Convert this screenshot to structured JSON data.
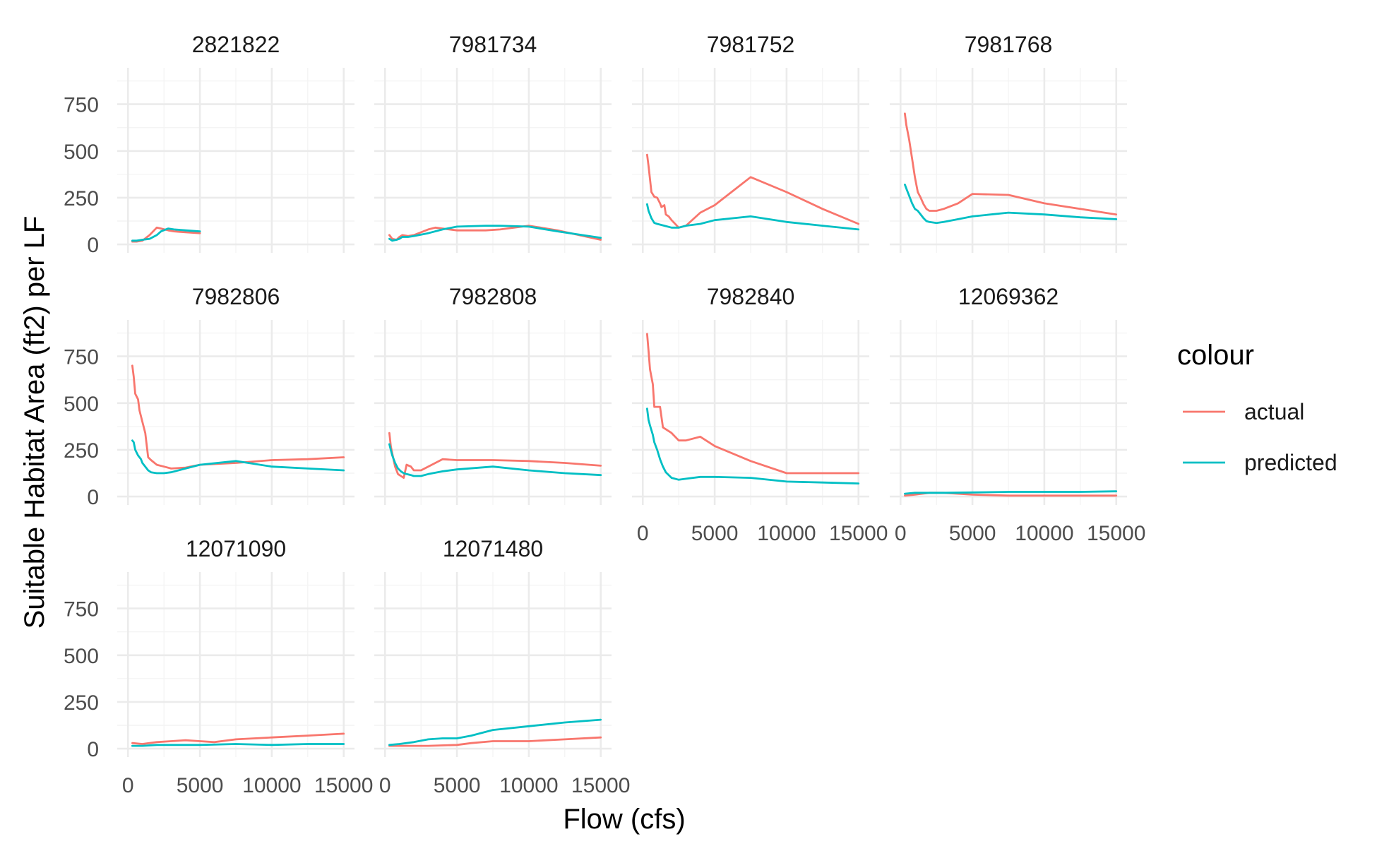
{
  "chart_data": {
    "type": "line",
    "xlabel": "Flow (cfs)",
    "ylabel": "Suitable Habitat Area (ft2) per LF",
    "xlim": [
      0,
      15000
    ],
    "ylim": [
      0,
      900
    ],
    "x_ticks": [
      0,
      5000,
      10000,
      15000
    ],
    "y_ticks": [
      0,
      250,
      500,
      750
    ],
    "grid": true,
    "legend": {
      "title": "colour",
      "placement": "right",
      "entries": [
        {
          "name": "actual",
          "color": "#F8766D"
        },
        {
          "name": "predicted",
          "color": "#00BFC4"
        }
      ]
    },
    "panels": [
      {
        "title": "2821822",
        "series": [
          {
            "name": "actual",
            "x": [
              300,
              600,
              1000,
              1500,
              2000,
              2300,
              2800,
              3200,
              4000,
              5000
            ],
            "y": [
              15,
              15,
              20,
              50,
              90,
              85,
              75,
              70,
              65,
              60
            ]
          },
          {
            "name": "predicted",
            "x": [
              300,
              600,
              1000,
              1500,
              2000,
              2300,
              2800,
              3200,
              4000,
              5000
            ],
            "y": [
              20,
              20,
              25,
              30,
              50,
              70,
              85,
              80,
              75,
              70
            ]
          }
        ]
      },
      {
        "title": "7981734",
        "series": [
          {
            "name": "actual",
            "x": [
              300,
              500,
              800,
              1000,
              1200,
              1600,
              2000,
              3000,
              3500,
              4000,
              5000,
              7000,
              8000,
              10000,
              12000,
              15000
            ],
            "y": [
              50,
              30,
              25,
              40,
              50,
              45,
              50,
              80,
              90,
              85,
              75,
              75,
              80,
              100,
              75,
              25
            ]
          },
          {
            "name": "predicted",
            "x": [
              300,
              500,
              800,
              1000,
              1200,
              1600,
              2000,
              3000,
              4000,
              5000,
              7000,
              8000,
              10000,
              12000,
              15000
            ],
            "y": [
              30,
              20,
              25,
              30,
              40,
              40,
              45,
              60,
              80,
              95,
              100,
              100,
              95,
              70,
              35
            ]
          }
        ]
      },
      {
        "title": "7981752",
        "series": [
          {
            "name": "actual",
            "x": [
              300,
              400,
              600,
              800,
              1000,
              1200,
              1300,
              1500,
              1600,
              1800,
              2000,
              2500,
              3000,
              4000,
              5000,
              7500,
              10000,
              12500,
              15000
            ],
            "y": [
              480,
              420,
              280,
              255,
              250,
              220,
              200,
              210,
              160,
              150,
              130,
              90,
              100,
              170,
              210,
              360,
              280,
              190,
              110
            ]
          },
          {
            "name": "predicted",
            "x": [
              300,
              400,
              600,
              800,
              1000,
              1500,
              2000,
              2500,
              3000,
              4000,
              5000,
              7500,
              10000,
              12500,
              15000
            ],
            "y": [
              215,
              180,
              140,
              115,
              110,
              100,
              90,
              90,
              100,
              110,
              130,
              150,
              120,
              100,
              80
            ]
          }
        ]
      },
      {
        "title": "7981768",
        "series": [
          {
            "name": "actual",
            "x": [
              300,
              400,
              600,
              800,
              1000,
              1200,
              1400,
              1600,
              1800,
              2000,
              2500,
              3000,
              4000,
              5000,
              7500,
              10000,
              12500,
              15000
            ],
            "y": [
              700,
              640,
              560,
              460,
              360,
              280,
              250,
              215,
              190,
              180,
              180,
              190,
              220,
              270,
              265,
              220,
              190,
              160
            ]
          },
          {
            "name": "predicted",
            "x": [
              300,
              400,
              600,
              800,
              1000,
              1200,
              1400,
              1600,
              1800,
              2000,
              2500,
              3000,
              4000,
              5000,
              7500,
              10000,
              12500,
              15000
            ],
            "y": [
              320,
              300,
              260,
              220,
              190,
              180,
              160,
              140,
              125,
              120,
              115,
              120,
              135,
              150,
              170,
              160,
              145,
              135
            ]
          }
        ]
      },
      {
        "title": "7982806",
        "series": [
          {
            "name": "actual",
            "x": [
              300,
              400,
              500,
              700,
              800,
              900,
              1000,
              1200,
              1400,
              1600,
              2000,
              2500,
              3000,
              4000,
              5000,
              7500,
              10000,
              12500,
              15000
            ],
            "y": [
              700,
              640,
              550,
              520,
              460,
              430,
              400,
              340,
              210,
              195,
              170,
              160,
              150,
              155,
              170,
              180,
              195,
              200,
              210
            ]
          },
          {
            "name": "predicted",
            "x": [
              300,
              400,
              500,
              700,
              900,
              1000,
              1200,
              1400,
              1600,
              2000,
              2500,
              3000,
              4000,
              5000,
              7500,
              10000,
              12500,
              15000
            ],
            "y": [
              300,
              290,
              250,
              220,
              200,
              180,
              160,
              140,
              130,
              125,
              125,
              130,
              150,
              170,
              190,
              160,
              150,
              140
            ]
          }
        ]
      },
      {
        "title": "7982808",
        "series": [
          {
            "name": "actual",
            "x": [
              300,
              400,
              500,
              700,
              900,
              1100,
              1300,
              1500,
              1800,
              2000,
              2500,
              3000,
              4000,
              5000,
              7500,
              10000,
              12500,
              15000
            ],
            "y": [
              340,
              270,
              230,
              160,
              120,
              110,
              100,
              170,
              160,
              140,
              140,
              160,
              200,
              195,
              195,
              190,
              180,
              165
            ]
          },
          {
            "name": "predicted",
            "x": [
              300,
              400,
              500,
              700,
              900,
              1100,
              1300,
              1500,
              1800,
              2000,
              2500,
              3000,
              4000,
              5000,
              7500,
              10000,
              12500,
              15000
            ],
            "y": [
              280,
              250,
              220,
              180,
              150,
              135,
              125,
              120,
              115,
              110,
              110,
              120,
              135,
              145,
              160,
              140,
              125,
              115
            ]
          }
        ]
      },
      {
        "title": "7982840",
        "series": [
          {
            "name": "actual",
            "x": [
              300,
              400,
              500,
              700,
              800,
              1000,
              1200,
              1400,
              1600,
              2000,
              2500,
              3000,
              4000,
              5000,
              7500,
              10000,
              12500,
              15000
            ],
            "y": [
              870,
              780,
              680,
              600,
              480,
              480,
              480,
              370,
              360,
              340,
              300,
              300,
              320,
              270,
              190,
              125,
              125,
              125
            ]
          },
          {
            "name": "predicted",
            "x": [
              300,
              400,
              500,
              700,
              800,
              1000,
              1200,
              1400,
              1600,
              2000,
              2500,
              3000,
              4000,
              5000,
              7500,
              10000,
              12500,
              15000
            ],
            "y": [
              470,
              410,
              380,
              330,
              290,
              250,
              200,
              160,
              130,
              100,
              90,
              95,
              105,
              105,
              100,
              80,
              75,
              70
            ]
          }
        ]
      },
      {
        "title": "12069362",
        "series": [
          {
            "name": "actual",
            "x": [
              300,
              1000,
              2000,
              3000,
              5000,
              7500,
              10000,
              12500,
              15000
            ],
            "y": [
              5,
              10,
              20,
              20,
              10,
              5,
              5,
              5,
              5
            ]
          },
          {
            "name": "predicted",
            "x": [
              300,
              1000,
              2000,
              3000,
              5000,
              7500,
              10000,
              12500,
              15000
            ],
            "y": [
              15,
              20,
              20,
              20,
              22,
              25,
              25,
              25,
              28
            ]
          }
        ]
      },
      {
        "title": "12071090",
        "series": [
          {
            "name": "actual",
            "x": [
              300,
              1000,
              2000,
              3000,
              4000,
              5000,
              6000,
              7500,
              10000,
              12500,
              15000
            ],
            "y": [
              30,
              25,
              35,
              40,
              45,
              40,
              35,
              50,
              60,
              70,
              80
            ]
          },
          {
            "name": "predicted",
            "x": [
              300,
              1000,
              2000,
              3000,
              5000,
              7500,
              10000,
              12500,
              15000
            ],
            "y": [
              15,
              15,
              20,
              20,
              20,
              25,
              20,
              25,
              25
            ]
          }
        ]
      },
      {
        "title": "12071480",
        "series": [
          {
            "name": "actual",
            "x": [
              300,
              1000,
              2000,
              3000,
              5000,
              6000,
              7500,
              10000,
              12500,
              15000
            ],
            "y": [
              15,
              15,
              15,
              15,
              20,
              30,
              40,
              40,
              50,
              60
            ]
          },
          {
            "name": "predicted",
            "x": [
              300,
              1000,
              2000,
              3000,
              4000,
              5000,
              6000,
              7500,
              10000,
              12500,
              15000
            ],
            "y": [
              20,
              25,
              35,
              50,
              55,
              55,
              70,
              100,
              120,
              140,
              155
            ]
          }
        ]
      }
    ]
  }
}
